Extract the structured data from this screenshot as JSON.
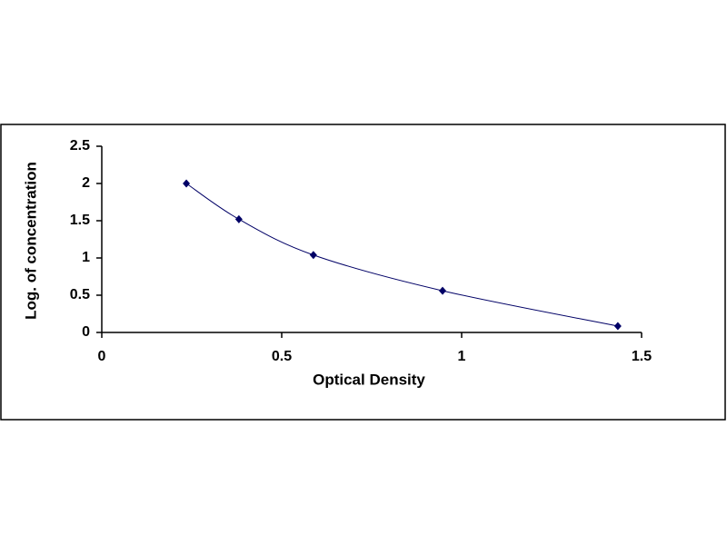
{
  "chart_data": {
    "type": "scatter",
    "x_label": "Optical Density",
    "y_label": "Log. of concentration",
    "x": [
      0.235,
      0.381,
      0.588,
      0.947,
      1.434
    ],
    "values": [
      2.0,
      1.52,
      1.04,
      0.56,
      0.085
    ],
    "color": "#000066",
    "line": "smooth",
    "xlim": [
      0,
      1.5
    ],
    "xticks": [
      0,
      0.5,
      1,
      1.5
    ],
    "ylim": [
      0,
      2.5
    ],
    "yticks": [
      0,
      0.5,
      1,
      1.5,
      2,
      2.5
    ]
  }
}
